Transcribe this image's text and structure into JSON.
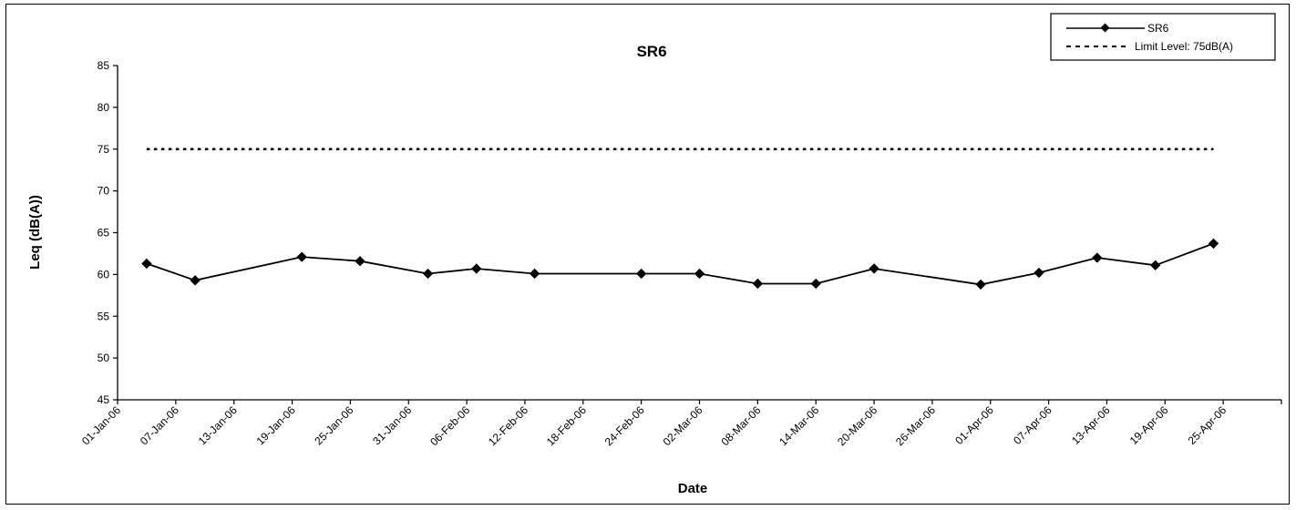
{
  "chart_data": {
    "type": "line",
    "title": "SR6",
    "xlabel": "Date",
    "ylabel": "Leq (dB(A))",
    "ylim": [
      45,
      85
    ],
    "yticks": [
      45,
      50,
      55,
      60,
      65,
      70,
      75,
      80,
      85
    ],
    "xlim": [
      "2006-01-01",
      "2006-05-01"
    ],
    "xtick_labels": [
      "01-Jan-06",
      "07-Jan-06",
      "13-Jan-06",
      "19-Jan-06",
      "25-Jan-06",
      "31-Jan-06",
      "06-Feb-06",
      "12-Feb-06",
      "18-Feb-06",
      "24-Feb-06",
      "02-Mar-06",
      "08-Mar-06",
      "14-Mar-06",
      "20-Mar-06",
      "26-Mar-06",
      "01-Apr-06",
      "07-Apr-06",
      "13-Apr-06",
      "19-Apr-06",
      "25-Apr-06"
    ],
    "grid": false,
    "legend_position": "top-right",
    "series": [
      {
        "name": "SR6",
        "style": "solid-diamond",
        "color": "#000000",
        "x": [
          "2006-01-04",
          "2006-01-09",
          "2006-01-20",
          "2006-01-26",
          "2006-02-02",
          "2006-02-07",
          "2006-02-13",
          "2006-02-24",
          "2006-03-02",
          "2006-03-08",
          "2006-03-14",
          "2006-03-20",
          "2006-03-31",
          "2006-04-06",
          "2006-04-12",
          "2006-04-18",
          "2006-04-24"
        ],
        "y": [
          61.3,
          59.3,
          62.1,
          61.6,
          60.1,
          60.7,
          60.1,
          60.1,
          60.1,
          58.9,
          58.9,
          60.7,
          58.8,
          60.2,
          62.0,
          61.1,
          63.7
        ]
      },
      {
        "name": "Limit Level: 75dB(A)",
        "style": "dotted",
        "color": "#000000",
        "x": [
          "2006-01-04",
          "2006-04-24"
        ],
        "y": [
          75,
          75
        ]
      }
    ]
  }
}
